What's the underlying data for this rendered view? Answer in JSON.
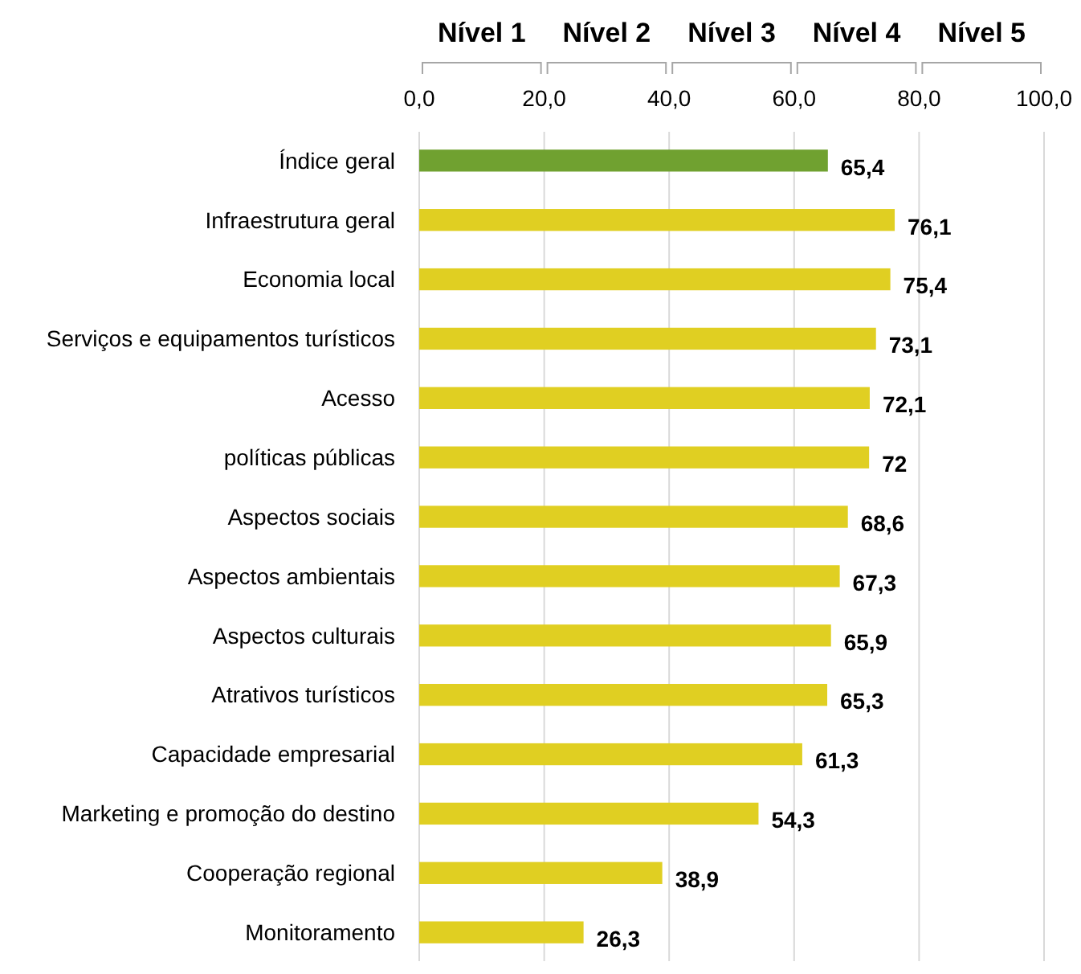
{
  "chart_data": {
    "type": "bar",
    "orientation": "horizontal",
    "categories": [
      "Índice geral",
      "Infraestrutura geral",
      "Economia local",
      "Serviços e equipamentos turísticos",
      "Acesso",
      "políticas públicas",
      "Aspectos sociais",
      "Aspectos ambientais",
      "Aspectos culturais",
      "Atrativos turísticos",
      "Capacidade empresarial",
      "Marketing e promoção do destino",
      "Cooperação regional",
      "Monitoramento"
    ],
    "values": [
      65.4,
      76.1,
      75.4,
      73.1,
      72.1,
      72,
      68.6,
      67.3,
      65.9,
      65.3,
      61.3,
      54.3,
      38.9,
      26.3
    ],
    "value_labels": [
      "65,4",
      "76,1",
      "75,4",
      "73,1",
      "72,1",
      "72",
      "68,6",
      "67,3",
      "65,9",
      "65,3",
      "61,3",
      "54,3",
      "38,9",
      "26,3"
    ],
    "colors": [
      "#70a130",
      "#e0cf22",
      "#e0cf22",
      "#e0cf22",
      "#e0cf22",
      "#e0cf22",
      "#e0cf22",
      "#e0cf22",
      "#e0cf22",
      "#e0cf22",
      "#e0cf22",
      "#e0cf22",
      "#e0cf22",
      "#e0cf22"
    ],
    "xlim": [
      0,
      100
    ],
    "xticks": [
      {
        "value": 0,
        "label": "0,0"
      },
      {
        "value": 20,
        "label": "20,0"
      },
      {
        "value": 40,
        "label": "40,0"
      },
      {
        "value": 60,
        "label": "60,0"
      },
      {
        "value": 80,
        "label": "80,0"
      },
      {
        "value": 100,
        "label": "100,0"
      }
    ],
    "grid": "x",
    "annotations": [
      "Nível 1",
      "Nível 2",
      "Nível 3",
      "Nível 4",
      "Nível 5"
    ]
  }
}
